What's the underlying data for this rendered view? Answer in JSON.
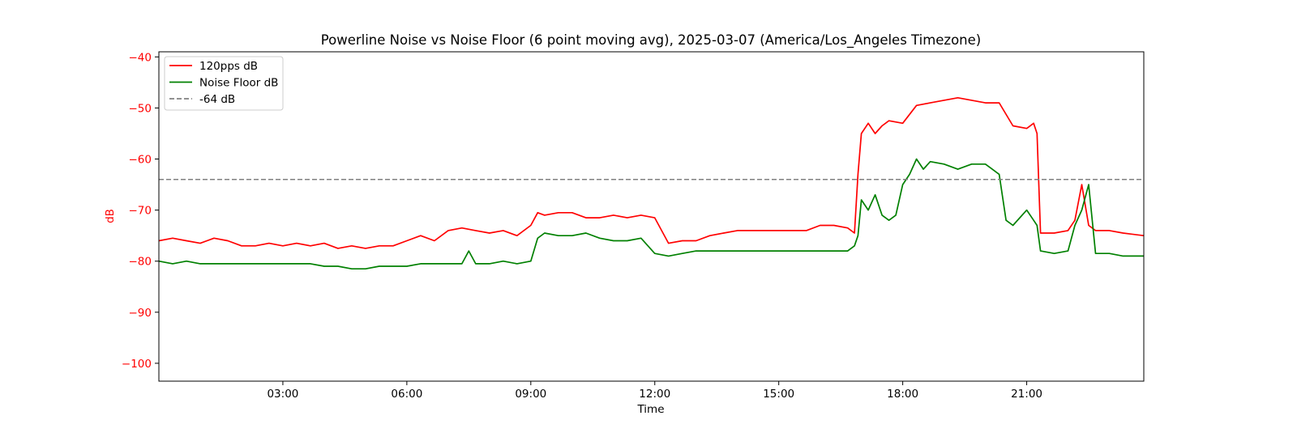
{
  "chart_data": {
    "type": "line",
    "title": "Powerline Noise vs Noise Floor (6 point moving avg), 2025-03-07 (America/Los_Angeles Timezone)",
    "xlabel": "Time",
    "ylabel": "dB",
    "x_unit": "hours",
    "xlim": [
      "00:00",
      "23:50"
    ],
    "ylim": [
      -103.5,
      -39
    ],
    "xticks": [
      "03:00",
      "06:00",
      "09:00",
      "12:00",
      "15:00",
      "18:00",
      "21:00"
    ],
    "yticks": [
      -40,
      -50,
      -60,
      -70,
      -80,
      -90,
      -100
    ],
    "grid": false,
    "legend_position": "top-left",
    "ylabel_color": "#ff0000",
    "series": [
      {
        "name": "120pps dB",
        "color": "#ff0000",
        "style": "solid",
        "x": [
          "00:00",
          "00:20",
          "00:40",
          "01:00",
          "01:20",
          "01:40",
          "02:00",
          "02:20",
          "02:40",
          "03:00",
          "03:20",
          "03:40",
          "04:00",
          "04:20",
          "04:40",
          "05:00",
          "05:20",
          "05:40",
          "06:00",
          "06:20",
          "06:40",
          "07:00",
          "07:20",
          "07:40",
          "08:00",
          "08:20",
          "08:40",
          "09:00",
          "09:10",
          "09:20",
          "09:40",
          "10:00",
          "10:20",
          "10:40",
          "11:00",
          "11:20",
          "11:40",
          "12:00",
          "12:20",
          "12:40",
          "13:00",
          "13:20",
          "13:40",
          "14:00",
          "14:20",
          "14:40",
          "15:00",
          "15:20",
          "15:40",
          "16:00",
          "16:20",
          "16:40",
          "16:50",
          "16:55",
          "17:00",
          "17:10",
          "17:20",
          "17:30",
          "17:40",
          "18:00",
          "18:20",
          "18:40",
          "19:00",
          "19:20",
          "19:40",
          "20:00",
          "20:20",
          "20:40",
          "21:00",
          "21:10",
          "21:15",
          "21:20",
          "21:40",
          "22:00",
          "22:10",
          "22:20",
          "22:30",
          "22:40",
          "23:00",
          "23:20",
          "23:50"
        ],
        "y": [
          -76,
          -75.5,
          -76,
          -76.5,
          -75.5,
          -76,
          -77,
          -77,
          -76.5,
          -77,
          -76.5,
          -77,
          -76.5,
          -77.5,
          -77,
          -77.5,
          -77,
          -77,
          -76,
          -75,
          -76,
          -74,
          -73.5,
          -74,
          -74.5,
          -74,
          -75,
          -73,
          -70.5,
          -71,
          -70.5,
          -70.5,
          -71.5,
          -71.5,
          -71,
          -71.5,
          -71,
          -71.5,
          -76.5,
          -76,
          -76,
          -75,
          -74.5,
          -74,
          -74,
          -74,
          -74,
          -74,
          -74,
          -73,
          -73,
          -73.5,
          -74.5,
          -63,
          -55,
          -53,
          -55,
          -53.5,
          -52.5,
          -53,
          -49.5,
          -49,
          -48.5,
          -48,
          -48.5,
          -49,
          -49,
          -53.5,
          -54,
          -53,
          -55,
          -74.5,
          -74.5,
          -74,
          -72,
          -65,
          -73,
          -74,
          -74,
          -74.5,
          -75
        ]
      },
      {
        "name": "Noise Floor dB",
        "color": "#008000",
        "style": "solid",
        "x": [
          "00:00",
          "00:20",
          "00:40",
          "01:00",
          "01:20",
          "01:40",
          "02:00",
          "02:20",
          "02:40",
          "03:00",
          "03:20",
          "03:40",
          "04:00",
          "04:20",
          "04:40",
          "05:00",
          "05:20",
          "05:40",
          "06:00",
          "06:20",
          "06:40",
          "07:00",
          "07:20",
          "07:30",
          "07:40",
          "08:00",
          "08:20",
          "08:40",
          "09:00",
          "09:10",
          "09:20",
          "09:40",
          "10:00",
          "10:20",
          "10:40",
          "11:00",
          "11:20",
          "11:40",
          "12:00",
          "12:20",
          "12:40",
          "13:00",
          "13:20",
          "13:40",
          "14:00",
          "14:20",
          "14:40",
          "15:00",
          "15:20",
          "15:40",
          "16:00",
          "16:20",
          "16:40",
          "16:50",
          "16:55",
          "17:00",
          "17:10",
          "17:20",
          "17:30",
          "17:40",
          "17:50",
          "18:00",
          "18:10",
          "18:20",
          "18:30",
          "18:40",
          "19:00",
          "19:20",
          "19:40",
          "20:00",
          "20:10",
          "20:20",
          "20:30",
          "20:40",
          "21:00",
          "21:10",
          "21:15",
          "21:20",
          "21:40",
          "22:00",
          "22:10",
          "22:20",
          "22:30",
          "22:40",
          "23:00",
          "23:20",
          "23:50"
        ],
        "y": [
          -80,
          -80.5,
          -80,
          -80.5,
          -80.5,
          -80.5,
          -80.5,
          -80.5,
          -80.5,
          -80.5,
          -80.5,
          -80.5,
          -81,
          -81,
          -81.5,
          -81.5,
          -81,
          -81,
          -81,
          -80.5,
          -80.5,
          -80.5,
          -80.5,
          -78,
          -80.5,
          -80.5,
          -80,
          -80.5,
          -80,
          -75.5,
          -74.5,
          -75,
          -75,
          -74.5,
          -75.5,
          -76,
          -76,
          -75.5,
          -78.5,
          -79,
          -78.5,
          -78,
          -78,
          -78,
          -78,
          -78,
          -78,
          -78,
          -78,
          -78,
          -78,
          -78,
          -78,
          -77,
          -75,
          -68,
          -70,
          -67,
          -71,
          -72,
          -71,
          -65,
          -63,
          -60,
          -62,
          -60.5,
          -61,
          -62,
          -61,
          -61,
          -62,
          -63,
          -72,
          -73,
          -70,
          -72,
          -73,
          -78,
          -78.5,
          -78,
          -73,
          -70,
          -65,
          -78.5,
          -78.5,
          -79,
          -79
        ]
      },
      {
        "name": "-64 dB",
        "color": "#808080",
        "style": "dashed",
        "x": [
          "00:00",
          "23:50"
        ],
        "y": [
          -64,
          -64
        ]
      }
    ]
  }
}
